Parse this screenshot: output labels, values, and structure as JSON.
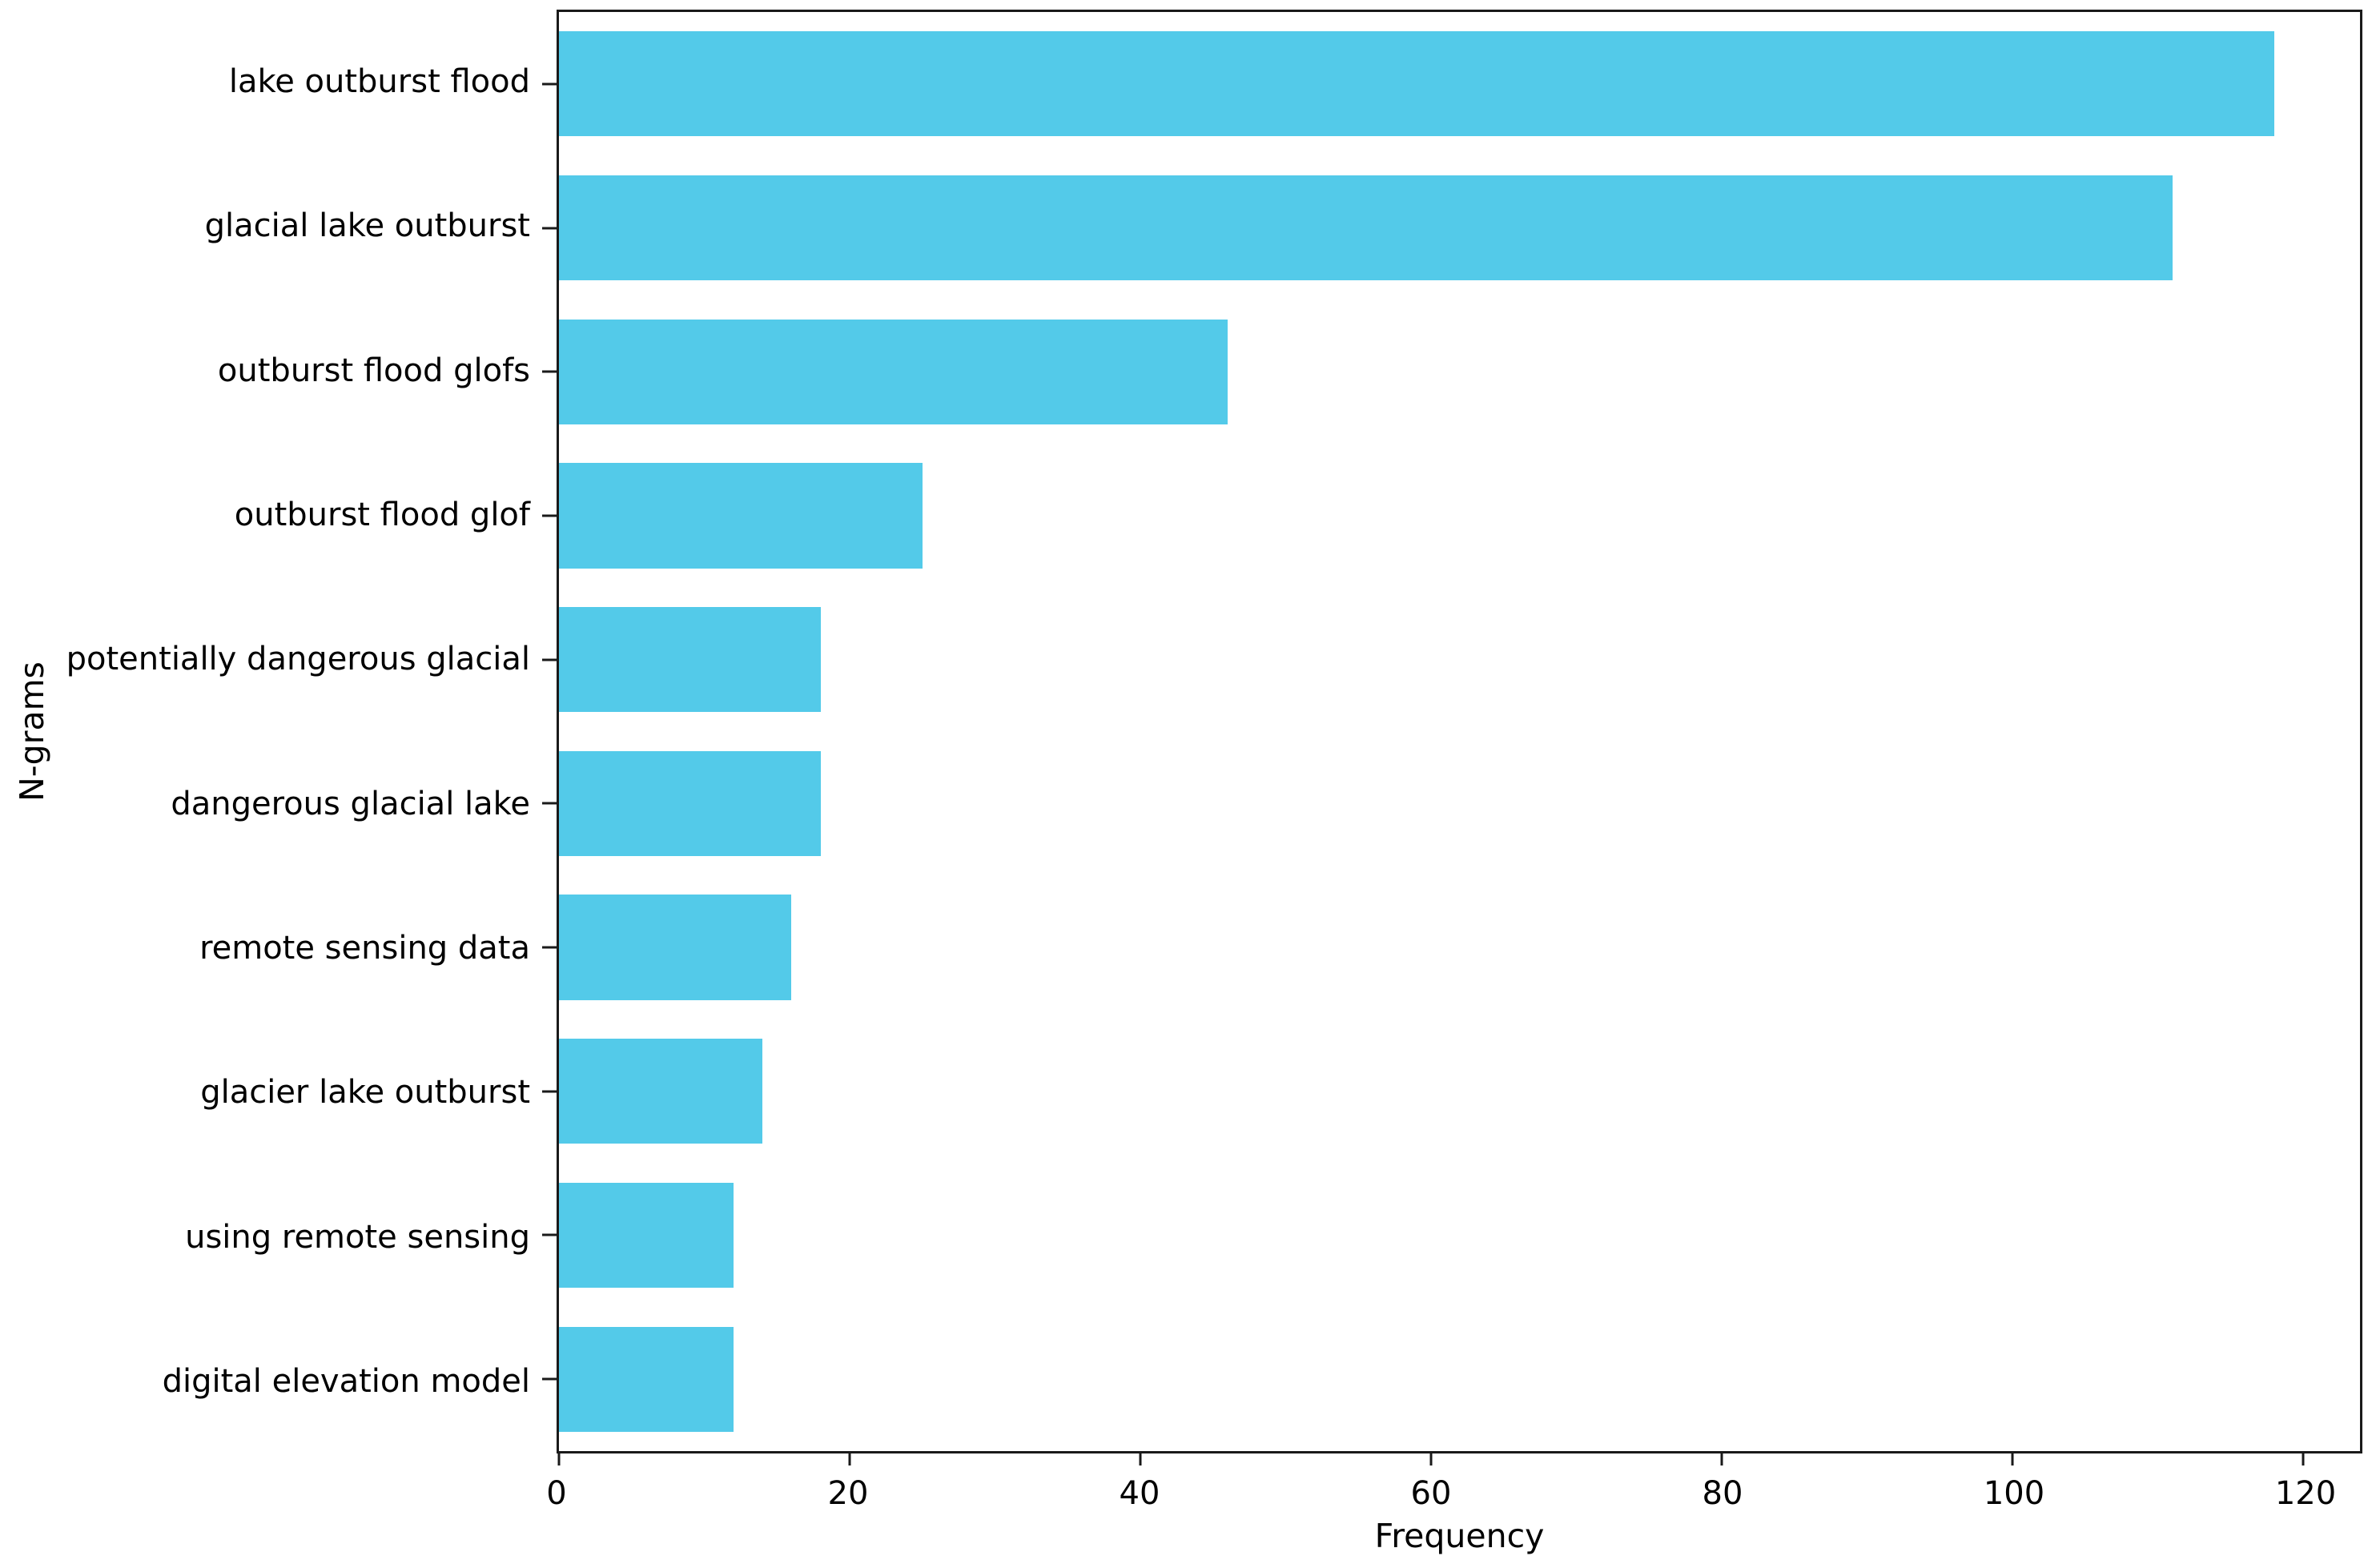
{
  "figure": {
    "background": "#ffffff",
    "bar_color": "#53CAE9",
    "axis_color": "#1a1a1a",
    "text_color": "#000000"
  },
  "chart_data": {
    "type": "bar",
    "orientation": "horizontal",
    "title": "",
    "xlabel": "Frequency",
    "ylabel": "N-grams",
    "categories": [
      "lake outburst flood",
      "glacial lake outburst",
      "outburst flood glofs",
      "outburst flood glof",
      "potentially dangerous glacial",
      "dangerous glacial lake",
      "remote sensing data",
      "glacier lake outburst",
      "using remote sensing",
      "digital elevation model"
    ],
    "values": [
      118,
      111,
      46,
      25,
      18,
      18,
      16,
      14,
      12,
      12
    ],
    "xticks": [
      0,
      20,
      40,
      60,
      80,
      100,
      120
    ],
    "xlim": [
      0,
      123.9
    ],
    "grid": false,
    "legend_position": "none"
  }
}
